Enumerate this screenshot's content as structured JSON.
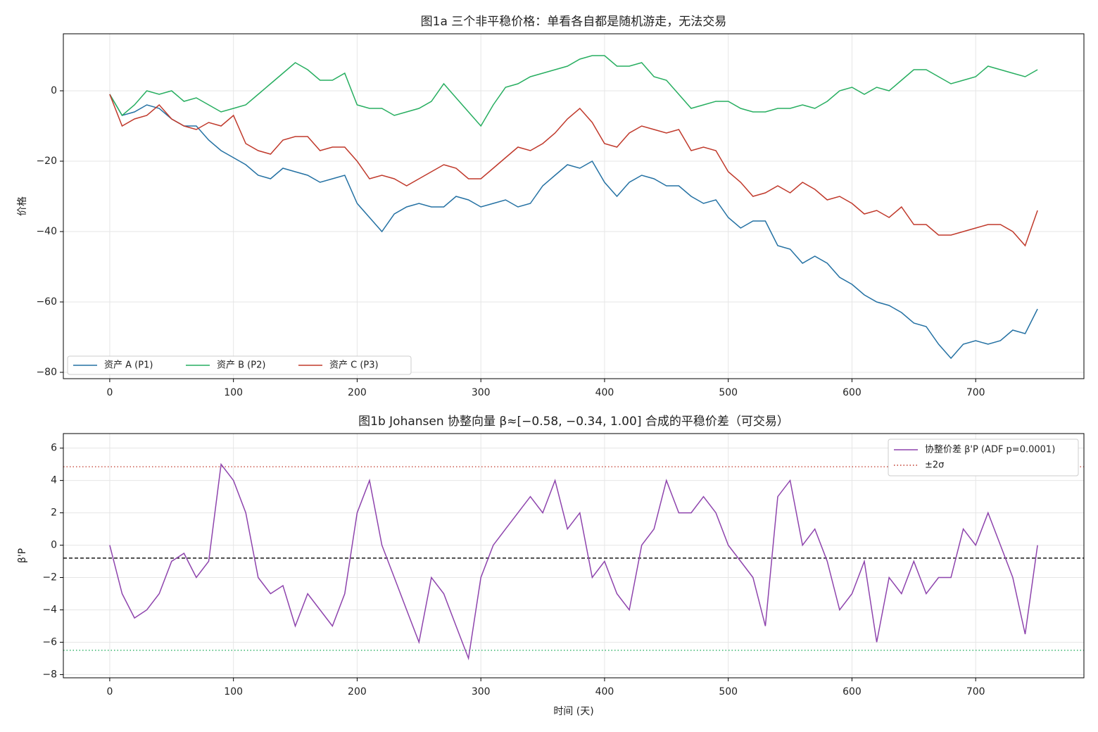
{
  "chart_data": [
    {
      "type": "line",
      "title": "图1a  三个非平稳价格：单看各自都是随机游走，无法交易",
      "ylabel": "价格",
      "xlim": [
        -37.5,
        787.5
      ],
      "ylim": [
        -81.8,
        16.2
      ],
      "xticks": [
        0,
        100,
        200,
        300,
        400,
        500,
        600,
        700
      ],
      "yticks": [
        {
          "value": -80,
          "label": "−80"
        },
        {
          "value": -60,
          "label": "−60"
        },
        {
          "value": -40,
          "label": "−40"
        },
        {
          "value": -20,
          "label": "−20"
        },
        0
      ],
      "grid": true,
      "legend": "lower left",
      "x": [
        0,
        10,
        20,
        30,
        40,
        50,
        60,
        70,
        80,
        90,
        100,
        110,
        120,
        130,
        140,
        150,
        160,
        170,
        180,
        190,
        200,
        210,
        220,
        230,
        240,
        250,
        260,
        270,
        280,
        290,
        300,
        310,
        320,
        330,
        340,
        350,
        360,
        370,
        380,
        390,
        400,
        410,
        420,
        430,
        440,
        450,
        460,
        470,
        480,
        490,
        500,
        510,
        520,
        530,
        540,
        550,
        560,
        570,
        580,
        590,
        600,
        610,
        620,
        630,
        640,
        650,
        660,
        670,
        680,
        690,
        700,
        710,
        720,
        730,
        740,
        750
      ],
      "series": [
        {
          "name": "资产 A (P1)",
          "color": "#2471a3",
          "values": [
            -1,
            -7,
            -6,
            -4,
            -5,
            -8,
            -10,
            -10,
            -14,
            -17,
            -19,
            -21,
            -24,
            -25,
            -22,
            -23,
            -24,
            -26,
            -25,
            -24,
            -32,
            -36,
            -40,
            -35,
            -33,
            -32,
            -33,
            -33,
            -30,
            -31,
            -33,
            -32,
            -31,
            -33,
            -32,
            -27,
            -24,
            -21,
            -22,
            -20,
            -26,
            -30,
            -26,
            -24,
            -25,
            -27,
            -27,
            -30,
            -32,
            -31,
            -36,
            -39,
            -37,
            -37,
            -44,
            -45,
            -49,
            -47,
            -49,
            -53,
            -55,
            -58,
            -60,
            -61,
            -63,
            -66,
            -67,
            -72,
            -76,
            -72,
            -71,
            -72,
            -71,
            -68,
            -69,
            -62
          ]
        },
        {
          "name": "资产 B (P2)",
          "color": "#27ae60",
          "values": [
            -1,
            -7,
            -4,
            0,
            -1,
            0,
            -3,
            -2,
            -4,
            -6,
            -5,
            -4,
            -1,
            2,
            5,
            8,
            6,
            3,
            3,
            5,
            -4,
            -5,
            -5,
            -7,
            -6,
            -5,
            -3,
            2,
            -2,
            -6,
            -10,
            -4,
            1,
            2,
            4,
            5,
            6,
            7,
            9,
            10,
            10,
            7,
            7,
            8,
            4,
            3,
            -1,
            -5,
            -4,
            -3,
            -3,
            -5,
            -6,
            -6,
            -5,
            -5,
            -4,
            -5,
            -3,
            0,
            1,
            -1,
            1,
            0,
            3,
            6,
            6,
            4,
            2,
            3,
            4,
            7,
            6,
            5,
            4,
            6
          ]
        },
        {
          "name": "资产 C (P3)",
          "color": "#c0392b",
          "values": [
            -1,
            -10,
            -8,
            -7,
            -4,
            -8,
            -10,
            -11,
            -9,
            -10,
            -7,
            -15,
            -17,
            -18,
            -14,
            -13,
            -13,
            -17,
            -16,
            -16,
            -20,
            -25,
            -24,
            -25,
            -27,
            -25,
            -23,
            -21,
            -22,
            -25,
            -25,
            -22,
            -19,
            -16,
            -17,
            -15,
            -12,
            -8,
            -5,
            -9,
            -15,
            -16,
            -12,
            -10,
            -11,
            -12,
            -11,
            -17,
            -16,
            -17,
            -23,
            -26,
            -30,
            -29,
            -27,
            -29,
            -26,
            -28,
            -31,
            -30,
            -32,
            -35,
            -34,
            -36,
            -33,
            -38,
            -38,
            -41,
            -41,
            -40,
            -39,
            -38,
            -38,
            -40,
            -44,
            -34
          ]
        }
      ]
    },
    {
      "type": "line",
      "title": "图1b  Johansen 协整向量 β≈[−0.58, −0.34, 1.00] 合成的平稳价差（可交易）",
      "xlabel": "时间 (天)",
      "ylabel": "β'P",
      "xlim": [
        -37.5,
        787.5
      ],
      "ylim": [
        -8.2,
        6.9
      ],
      "xticks": [
        0,
        100,
        200,
        300,
        400,
        500,
        600,
        700
      ],
      "yticks": [
        {
          "value": -8,
          "label": "−8"
        },
        {
          "value": -6,
          "label": "−6"
        },
        {
          "value": -4,
          "label": "−4"
        },
        {
          "value": -2,
          "label": "−2"
        },
        0,
        2,
        4,
        6
      ],
      "grid": true,
      "legend": "upper right",
      "x": [
        0,
        10,
        20,
        30,
        40,
        50,
        60,
        70,
        80,
        90,
        100,
        110,
        120,
        130,
        140,
        150,
        160,
        170,
        180,
        190,
        200,
        210,
        220,
        230,
        240,
        250,
        260,
        270,
        280,
        290,
        300,
        310,
        320,
        330,
        340,
        350,
        360,
        370,
        380,
        390,
        400,
        410,
        420,
        430,
        440,
        450,
        460,
        470,
        480,
        490,
        500,
        510,
        520,
        530,
        540,
        550,
        560,
        570,
        580,
        590,
        600,
        610,
        620,
        630,
        640,
        650,
        660,
        670,
        680,
        690,
        700,
        710,
        720,
        730,
        740,
        750
      ],
      "series": [
        {
          "name": "协整价差 β'P (ADF p=0.0001)",
          "color": "#8e44ad",
          "values": [
            0,
            -3,
            -4.5,
            -4,
            -3,
            -1,
            -0.5,
            -2,
            -1,
            5,
            4,
            2,
            -2,
            -3,
            -2.5,
            -5,
            -3,
            -4,
            -5,
            -3,
            2,
            4,
            0,
            -2,
            -4,
            -6,
            -2,
            -3,
            -5,
            -7,
            -2,
            0,
            1,
            2,
            3,
            2,
            4,
            1,
            2,
            -2,
            -1,
            -3,
            -4,
            0,
            1,
            4,
            2,
            2,
            3,
            2,
            0,
            -1,
            -2,
            -5,
            3,
            4,
            0,
            1,
            -1,
            -4,
            -3,
            -1,
            -6,
            -2,
            -3,
            -1,
            -3,
            -2,
            -2,
            1,
            0,
            2,
            0,
            -2,
            -5.5,
            0
          ]
        }
      ],
      "mean_line": {
        "value": -0.8,
        "color": "#000000"
      },
      "band_lines": {
        "name": "±2σ",
        "values": [
          4.85,
          -6.5
        ],
        "colors": [
          "#c0392b",
          "#27ae60"
        ]
      }
    }
  ]
}
